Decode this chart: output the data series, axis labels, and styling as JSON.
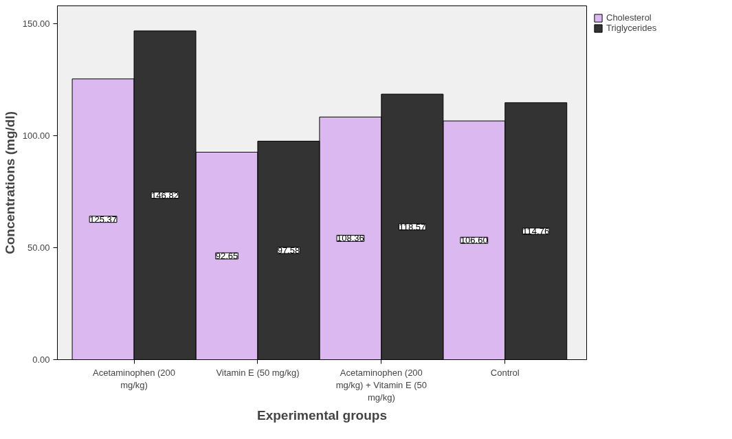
{
  "chart_data": {
    "type": "bar",
    "xlabel": "Experimental groups",
    "ylabel": "Concentrations (mg/dl)",
    "categories": [
      "Acetaminophen (200 mg/kg)",
      "Vitamin E (50 mg/kg)",
      "Acetaminophen (200 mg/kg) + Vitamin E (50 mg/kg)",
      "Control"
    ],
    "series": [
      {
        "name": "Cholesterol",
        "color": "#dcb8f0",
        "values": [
          125.37,
          92.65,
          108.36,
          106.6
        ],
        "value_labels": [
          "125.37",
          "92.65",
          "108.36",
          "106.60"
        ]
      },
      {
        "name": "Triglycerides",
        "color": "#333333",
        "values": [
          146.82,
          97.58,
          118.57,
          114.76
        ],
        "value_labels": [
          "146.82",
          "97.58",
          "118.57",
          "114.76"
        ]
      }
    ],
    "ylim": [
      0,
      158
    ],
    "yticks": [
      {
        "value": 0,
        "label": "0.00"
      },
      {
        "value": 50,
        "label": "50.00"
      },
      {
        "value": 100,
        "label": "100.00"
      },
      {
        "value": 150,
        "label": "150.00"
      }
    ],
    "data_labels": true,
    "grid": false,
    "legend": "top right"
  }
}
